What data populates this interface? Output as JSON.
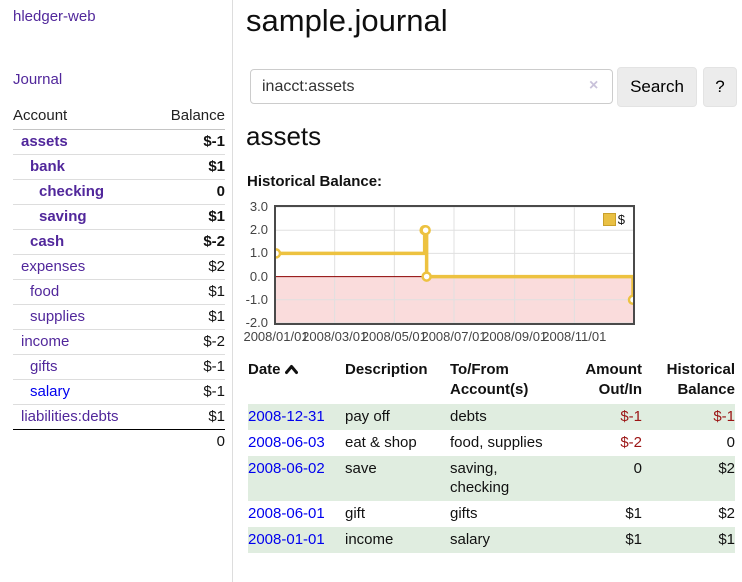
{
  "sidebar": {
    "brand": "hledger-web",
    "journal_link": "Journal",
    "accounts_header": {
      "account": "Account",
      "balance": "Balance"
    },
    "accounts": [
      {
        "name": "assets",
        "indent": 1,
        "bold": true,
        "balance": "$-1",
        "neg": "strong",
        "link": "purple"
      },
      {
        "name": "bank",
        "indent": 2,
        "bold": true,
        "balance": "$1",
        "neg": "none",
        "link": "purple"
      },
      {
        "name": "checking",
        "indent": 3,
        "bold": true,
        "balance": "0",
        "neg": "none",
        "link": "purple"
      },
      {
        "name": "saving",
        "indent": 3,
        "bold": true,
        "balance": "$1",
        "neg": "none",
        "link": "purple"
      },
      {
        "name": "cash",
        "indent": 2,
        "bold": true,
        "balance": "$-2",
        "neg": "strong",
        "link": "purple"
      },
      {
        "name": "expenses",
        "indent": 1,
        "bold": false,
        "balance": "$2",
        "neg": "none",
        "link": "purple"
      },
      {
        "name": "food",
        "indent": 2,
        "bold": false,
        "balance": "$1",
        "neg": "none",
        "link": "purple"
      },
      {
        "name": "supplies",
        "indent": 2,
        "bold": false,
        "balance": "$1",
        "neg": "none",
        "link": "purple"
      },
      {
        "name": "income",
        "indent": 1,
        "bold": false,
        "balance": "$-2",
        "neg": "soft",
        "link": "purple"
      },
      {
        "name": "gifts",
        "indent": 2,
        "bold": false,
        "balance": "$-1",
        "neg": "soft",
        "link": "purple"
      },
      {
        "name": "salary",
        "indent": 2,
        "bold": false,
        "balance": "$-1",
        "neg": "soft",
        "link": "blue"
      },
      {
        "name": "liabilities:debts",
        "indent": 1,
        "bold": false,
        "balance": "$1",
        "neg": "none",
        "link": "purple"
      }
    ],
    "total": "0"
  },
  "header": {
    "title": "sample.journal"
  },
  "search": {
    "value": "inacct:assets",
    "clear_icon": "×",
    "button_label": "Search",
    "help_label": "?"
  },
  "account_page": {
    "heading": "assets",
    "chart_label": "Historical Balance:"
  },
  "chart_data": {
    "type": "line",
    "step": true,
    "title": "Historical Balance:",
    "series": [
      {
        "name": "$",
        "color": "#edc240",
        "points": [
          [
            "2008-01-01",
            1
          ],
          [
            "2008-06-01",
            2
          ],
          [
            "2008-06-02",
            2
          ],
          [
            "2008-06-03",
            0
          ],
          [
            "2008-12-31",
            -1
          ]
        ]
      }
    ],
    "xlim": [
      "2008-01-01",
      "2008-12-31"
    ],
    "ylim": [
      -2,
      3
    ],
    "x_ticks": [
      "2008/01/01",
      "2008/03/01",
      "2008/05/01",
      "2008/07/01",
      "2008/09/01",
      "2008/11/01"
    ],
    "y_ticks": [
      3.0,
      2.0,
      1.0,
      0.0,
      -1.0,
      -2.0
    ],
    "grid": true,
    "legend_position": "top-right",
    "legend_label": "$",
    "zero_line_color": "#8b0000",
    "negative_region_fill": "#fadcdc"
  },
  "register": {
    "columns": {
      "date": "Date",
      "description": "Description",
      "tofrom_line1": "To/From",
      "tofrom_line2": "Account(s)",
      "amount_line1": "Amount",
      "amount_line2": "Out/In",
      "balance_line1": "Historical",
      "balance_line2": "Balance"
    },
    "sort": {
      "column": "date",
      "direction": "ascending"
    },
    "rows": [
      {
        "date": "2008-12-31",
        "description": "pay off",
        "accounts": "debts",
        "amount": "$-1",
        "amount_neg": true,
        "balance": "$-1",
        "balance_neg": true
      },
      {
        "date": "2008-06-03",
        "description": "eat & shop",
        "accounts": "food, supplies",
        "amount": "$-2",
        "amount_neg": true,
        "balance": "0",
        "balance_neg": false
      },
      {
        "date": "2008-06-02",
        "description": "save",
        "accounts": "saving, checking",
        "amount": "0",
        "amount_neg": false,
        "balance": "$2",
        "balance_neg": false
      },
      {
        "date": "2008-06-01",
        "description": "gift",
        "accounts": "gifts",
        "amount": "$1",
        "amount_neg": false,
        "balance": "$2",
        "balance_neg": false
      },
      {
        "date": "2008-01-01",
        "description": "income",
        "accounts": "salary",
        "amount": "$1",
        "amount_neg": false,
        "balance": "$1",
        "balance_neg": false
      }
    ]
  },
  "colors": {
    "link_purple": "#51279b",
    "link_blue": "#0000ee",
    "negative_strong": "#9b1414",
    "negative_soft": "#c4706f",
    "row_stripe_green": "#e0ede0",
    "chart_line_gold": "#edc240",
    "chart_negative_fill": "#fadcdc",
    "chart_zero_line": "#8b0000"
  }
}
